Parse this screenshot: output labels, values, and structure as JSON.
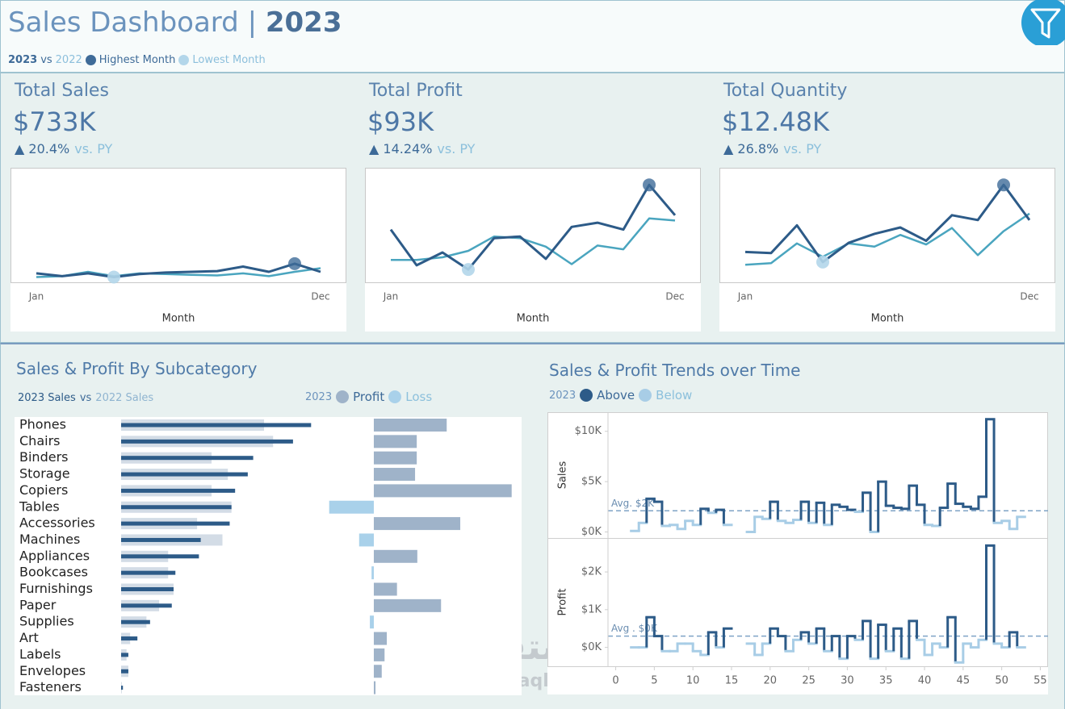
{
  "header": {
    "title": [
      "Sales Dashboard",
      "|",
      "2023"
    ],
    "legend": {
      "vs": "vs",
      "highest": "Highest Month",
      "lowest": "Lowest Month"
    },
    "marker_colors": {
      "highest": "#3f6b98",
      "lowest": "#b3d6ea"
    }
  },
  "chart_data": [
    {
      "type": "line",
      "title": "Total Sales",
      "kpi_value": "$733K",
      "kpi_change": "▲ 20.4%",
      "kpi_comparison": "vs. PY",
      "x_label": "Month",
      "categories": [
        "Jan",
        null,
        null,
        null,
        null,
        null,
        null,
        null,
        null,
        null,
        null,
        "Dec"
      ],
      "series": [
        {
          "name": "2023",
          "color": "#2d5b88",
          "values": [
            62,
            38,
            62,
            31,
            56,
            69,
            75,
            81,
            119,
            75,
            144,
            75
          ]
        },
        {
          "name": "2022",
          "color": "#4aa5bf",
          "values": [
            31,
            38,
            75,
            38,
            62,
            56,
            50,
            44,
            62,
            38,
            75,
            106
          ]
        }
      ],
      "ylim": [
        0,
        900
      ]
    },
    {
      "type": "line",
      "title": "Total Profit",
      "kpi_value": "$93K",
      "kpi_change": "▲ 14.24%",
      "kpi_comparison": "vs. PY",
      "x_label": "Month",
      "categories": [
        "Jan",
        null,
        null,
        null,
        null,
        null,
        null,
        null,
        null,
        null,
        null,
        "Dec"
      ],
      "series": [
        {
          "color": "#2d5b88",
          "values": [
            9.6,
            2.9,
            5.3,
            2.1,
            8.0,
            8.3,
            4.1,
            10.1,
            10.9,
            9.6,
            18.0,
            12.3
          ]
        },
        {
          "color": "#4aa5bf",
          "values": [
            3.9,
            3.9,
            4.4,
            5.6,
            8.3,
            8.0,
            6.4,
            3.1,
            6.6,
            5.9,
            11.7,
            11.3
          ]
        }
      ],
      "ylim": [
        0,
        20
      ]
    },
    {
      "type": "line",
      "title": "Total Quantity",
      "kpi_value": "$12.48K",
      "kpi_change": "▲ 26.8%",
      "kpi_comparison": "vs. PY",
      "x_label": "Month",
      "categories": [
        "Jan",
        null,
        null,
        null,
        null,
        null,
        null,
        null,
        null,
        null,
        null,
        "Dec"
      ],
      "series": [
        {
          "color": "#2d5b88",
          "values": [
            0.54,
            0.52,
            1.04,
            0.35,
            0.71,
            0.88,
            1.0,
            0.75,
            1.23,
            1.14,
            1.8,
            1.14
          ]
        },
        {
          "color": "#4aa5bf",
          "values": [
            0.3,
            0.33,
            0.7,
            0.45,
            0.7,
            0.64,
            0.86,
            0.68,
            0.99,
            0.48,
            0.93,
            1.26
          ]
        }
      ],
      "ylim": [
        0,
        2
      ]
    },
    {
      "type": "subcategory",
      "title": "Sales & Profit By Subcategory",
      "legend": {
        "vs": "vs",
        "year": "2023"
      },
      "categories": [
        "Phones",
        "Chairs",
        "Binders",
        "Storage",
        "Copiers",
        "Tables",
        "Accessories",
        "Machines",
        "Appliances",
        "Bookcases",
        "Furnishings",
        "Paper",
        "Supplies",
        "Art",
        "Labels",
        "Envelopes",
        "Fasteners"
      ],
      "series": [
        {
          "name": "2023 Sales",
          "color": "#2d5b88",
          "values": [
            105,
            95,
            73,
            70,
            63,
            61,
            60,
            44,
            43,
            30,
            29,
            28,
            16,
            9,
            4,
            4,
            1
          ]
        },
        {
          "name": "2022 Sales",
          "color": "#d3dce6",
          "values": [
            79,
            84,
            50,
            59,
            50,
            61,
            42,
            56,
            26,
            26,
            29,
            21,
            14,
            5,
            3,
            4,
            0.4
          ]
        }
      ],
      "xlim": [
        0,
        220
      ],
      "profit": {
        "name": "Profit",
        "loss_name": "Loss",
        "color": "#9fb3c9",
        "loss_color": "#a9d1ea",
        "values": [
          12.9,
          7.6,
          7.6,
          7.3,
          24.4,
          -7.9,
          15.3,
          -2.6,
          7.7,
          -0.4,
          4.1,
          11.9,
          -0.7,
          2.3,
          1.9,
          1.4,
          0.3
        ],
        "xlim": [
          -9,
          25.3
        ]
      }
    },
    {
      "type": "step",
      "title": "Sales & Profit Trends over Time",
      "legend": {
        "year": "2023",
        "above": "Above",
        "below": "Below"
      },
      "above_color": "#2d5b88",
      "below_color": "#a8cde6",
      "x": [
        2,
        3,
        4,
        5,
        6,
        7,
        8,
        9,
        10,
        11,
        12,
        13,
        14,
        15,
        16,
        17,
        18,
        19,
        20,
        21,
        22,
        23,
        24,
        25,
        26,
        27,
        28,
        29,
        30,
        31,
        32,
        33,
        34,
        35,
        36,
        37,
        38,
        39,
        40,
        41,
        42,
        43,
        44,
        45,
        46,
        47,
        48,
        49,
        50,
        51,
        52
      ],
      "xlim": [
        -1,
        56
      ],
      "xticks": [
        0,
        5,
        10,
        15,
        20,
        25,
        30,
        35,
        40,
        45,
        50,
        55
      ],
      "panels": [
        {
          "label": "Sales",
          "ylim": [
            -0.6,
            11.9
          ],
          "yticks": [
            {
              "value": 0,
              "label": "$0K"
            },
            {
              "value": 5,
              "label": "$5K"
            },
            {
              "value": 10,
              "label": "$10K"
            }
          ],
          "average": {
            "value": 2.1,
            "label": "Avg. $2K"
          },
          "values": [
            0.1,
            0.9,
            3.3,
            3.0,
            0.6,
            0.7,
            0.3,
            1.1,
            0.7,
            2.3,
            1.9,
            2.2,
            0.7,
            null,
            null,
            0,
            1.5,
            1.3,
            3.0,
            1.1,
            0.9,
            1.2,
            3.0,
            0.9,
            2.9,
            0.7,
            2.7,
            2.5,
            2.2,
            2.0,
            3.9,
            0,
            5.0,
            2.6,
            2.4,
            2.3,
            4.6,
            2.7,
            0.7,
            0.6,
            2.4,
            4.8,
            2.8,
            2.5,
            2.3,
            3.5,
            11.2,
            0.9,
            1.1,
            0.3,
            1.5
          ]
        },
        {
          "label": "Profit",
          "ylim": [
            -0.5,
            2.9
          ],
          "yticks": [
            {
              "value": 0,
              "label": "$0K"
            },
            {
              "value": 1,
              "label": "$1K"
            },
            {
              "value": 2,
              "label": "$2K"
            }
          ],
          "average": {
            "value": 0.3,
            "label": "Avg . $0K"
          },
          "values": [
            0,
            0,
            0.8,
            0.3,
            -0.1,
            -0.1,
            0.1,
            0.1,
            -0.1,
            -0.2,
            0.4,
            0,
            0.5,
            null,
            null,
            0.1,
            -0.2,
            0.1,
            0.5,
            0.3,
            -0.1,
            0.2,
            0.4,
            0.1,
            0.5,
            -0.1,
            0.3,
            -0.3,
            0.3,
            0.2,
            0.7,
            -0.3,
            0.6,
            -0.1,
            0.5,
            -0.3,
            0.7,
            0.2,
            -0.2,
            0.1,
            0,
            0.8,
            -0.4,
            0.1,
            0,
            0.2,
            2.7,
            0.1,
            0,
            0.4,
            0
          ]
        }
      ]
    }
  ],
  "watermark": [
    "مستقل",
    "mostaql.com"
  ]
}
